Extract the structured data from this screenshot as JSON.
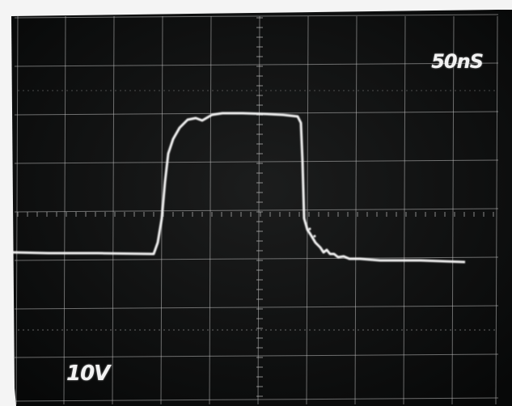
{
  "scope": {
    "timebase_label": "50nS",
    "volts_label": "10V",
    "colors": {
      "screen": "#0f1010",
      "grid": "#bdbdbd",
      "trace": "#f3f3f3",
      "bezel": "#f4f4f4"
    }
  }
}
